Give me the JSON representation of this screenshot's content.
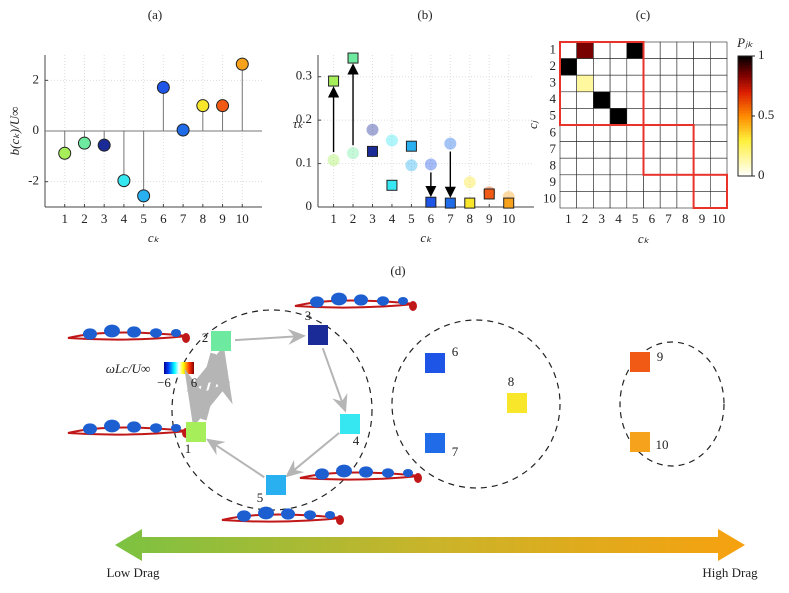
{
  "chart_data": [
    {
      "type": "stem",
      "panel_label": "(a)",
      "x": [
        1,
        2,
        3,
        4,
        5,
        6,
        7,
        8,
        9,
        10
      ],
      "values": [
        -0.88,
        -0.48,
        -0.56,
        -1.96,
        -2.56,
        1.72,
        0.04,
        1.0,
        1.0,
        2.64
      ],
      "colors": [
        "#a6ee5a",
        "#6eeaa0",
        "#1a2b98",
        "#36e6f0",
        "#28b0f0",
        "#1f55e6",
        "#1f6be8",
        "#f7e62a",
        "#f05a14",
        "#f7a21c"
      ],
      "xlim": [
        0,
        11
      ],
      "ylim": [
        -3,
        3
      ],
      "xticks": [
        1,
        2,
        3,
        4,
        5,
        6,
        7,
        8,
        9,
        10
      ],
      "yticks": [
        -2,
        0,
        2
      ],
      "xlabel": "cₖ",
      "ylabel": "b(cₖ)/U∞",
      "grid": true
    },
    {
      "type": "scatter",
      "panel_label": "(b)",
      "x": [
        1,
        2,
        3,
        4,
        5,
        6,
        7,
        8,
        9,
        10
      ],
      "series": [
        {
          "marker": "circle",
          "opacity": 0.4,
          "values": [
            0.108,
            0.124,
            0.178,
            0.153,
            0.096,
            0.098,
            0.146,
            0.057,
            0.034,
            0.023
          ]
        },
        {
          "marker": "square",
          "opacity": 1,
          "values": [
            0.29,
            0.343,
            0.128,
            0.05,
            0.14,
            0.011,
            0.009,
            0.009,
            0.03,
            0.009
          ]
        }
      ],
      "colors": [
        "#a6ee5a",
        "#6eeaa0",
        "#1a2b98",
        "#36e6f0",
        "#28b0f0",
        "#1f55e6",
        "#1f6be8",
        "#f7e62a",
        "#f05a14",
        "#f7a21c"
      ],
      "arrows": [
        1,
        2,
        6,
        7
      ],
      "xlim": [
        0.2,
        11.3
      ],
      "ylim": [
        0,
        0.35
      ],
      "xticks": [
        1,
        2,
        3,
        4,
        5,
        6,
        7,
        8,
        9,
        10
      ],
      "yticks": [
        0,
        0.1,
        0.2,
        0.3
      ],
      "xlabel": "cₖ",
      "ylabel": "τₖ",
      "grid": true
    },
    {
      "type": "heatmap",
      "panel_label": "(c)",
      "x": [
        1,
        2,
        3,
        4,
        5,
        6,
        7,
        8,
        9,
        10
      ],
      "y": [
        1,
        2,
        3,
        4,
        5,
        6,
        7,
        8,
        9,
        10
      ],
      "values": [
        [
          0,
          0.85,
          0,
          0,
          1,
          0,
          0,
          0,
          0,
          0
        ],
        [
          1,
          0,
          0,
          0,
          0,
          0,
          0,
          0,
          0,
          0
        ],
        [
          0,
          0.15,
          0,
          0,
          0,
          0,
          0,
          0,
          0,
          0
        ],
        [
          0,
          0,
          1,
          0,
          0,
          0,
          0,
          0,
          0,
          0
        ],
        [
          0,
          0,
          0,
          1,
          0,
          0,
          0,
          0,
          0,
          0
        ],
        [
          0,
          0,
          0,
          0,
          0,
          0,
          0,
          0,
          0,
          0
        ],
        [
          0,
          0,
          0,
          0,
          0,
          0,
          0,
          0,
          0,
          0
        ],
        [
          0,
          0,
          0,
          0,
          0,
          0,
          0,
          0,
          0,
          0
        ],
        [
          0,
          0,
          0,
          0,
          0,
          0,
          0,
          0,
          0,
          0
        ],
        [
          0,
          0,
          0,
          0,
          0,
          0,
          0,
          0,
          0,
          0
        ]
      ],
      "xlabel": "cₖ",
      "ylabel": "cⱼ",
      "colorbar_label": "Pⱼₖ",
      "clim": [
        0,
        1
      ],
      "cticks": [
        0,
        0.5,
        1
      ],
      "cluster_boxes": [
        [
          1,
          5
        ],
        [
          6,
          8
        ],
        [
          9,
          10
        ]
      ],
      "box_color": "#e8322a"
    }
  ],
  "diagram": {
    "panel_label": "(d)",
    "nodes": [
      {
        "label": "1",
        "color": "#a6ee5a"
      },
      {
        "label": "2",
        "color": "#6eeaa0"
      },
      {
        "label": "3",
        "color": "#1a2b98"
      },
      {
        "label": "4",
        "color": "#36e6f0"
      },
      {
        "label": "5",
        "color": "#28b0f0"
      },
      {
        "label": "6",
        "color": "#1f55e6"
      },
      {
        "label": "7",
        "color": "#1f6be8"
      },
      {
        "label": "8",
        "color": "#f7e62a"
      },
      {
        "label": "9",
        "color": "#f05a14"
      },
      {
        "label": "10",
        "color": "#f7a21c"
      }
    ],
    "colorbar_label": "ωLc/U∞",
    "colorbar_ticks": [
      {
        "value": -6,
        "label": "−6"
      },
      6
    ],
    "low_label": "Low Drag",
    "high_label": "High Drag"
  }
}
